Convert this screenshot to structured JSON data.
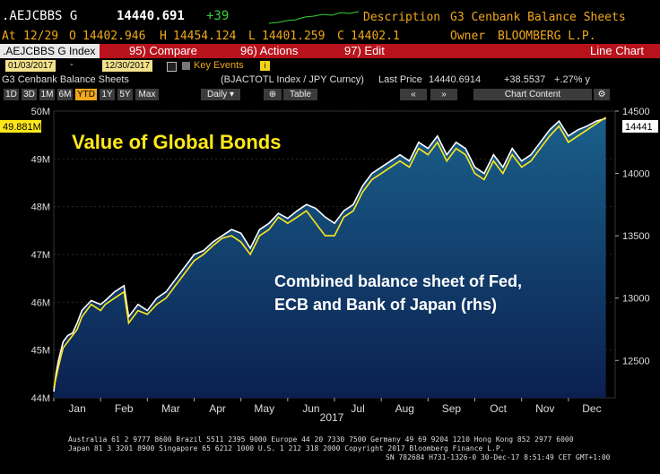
{
  "header": {
    "ticker": ".AEJCBBS G",
    "last": "14440.691",
    "change": "+39",
    "desc_label": "Description",
    "desc_value": "G3 Cenbank Balance Sheets",
    "at_label": "At",
    "at_value": "12/29",
    "o_label": "O",
    "o_value": "14402.946",
    "h_label": "H",
    "h_value": "14454.124",
    "l_label": "L",
    "l_value": "14401.259",
    "c_label": "C",
    "c_value": "14402.1",
    "owner_label": "Owner",
    "owner_value": "BLOOMBERG L.P."
  },
  "toolbar": {
    "index_label": ".AEJCBBS G Index",
    "compare_label": "95) Compare",
    "actions_label": "96) Actions",
    "edit_label": "97) Edit",
    "view_label": "Line Chart"
  },
  "range": {
    "start": "01/03/2017",
    "end": "12/30/2017",
    "key_events": "Key Events"
  },
  "info": {
    "title": "G3 Cenbank Balance Sheets",
    "compare_series": "(BJACTOTL Index / JPY Curncy)",
    "last_price_label": "Last Price",
    "last_price": "14440.6914",
    "change_abs": "+38.5537",
    "change_pct": "+.27% y"
  },
  "periods": [
    "1D",
    "3D",
    "1M",
    "6M",
    "YTD",
    "1Y",
    "5Y",
    "Max"
  ],
  "active_period": "YTD",
  "frequency": "Daily",
  "table_label": "Table",
  "chart_content_label": "Chart Content",
  "colors": {
    "white_series": "#ffffff",
    "yellow_series": "#ffe81a",
    "accent_red": "#b8131c",
    "area_top": "#1a5f8a",
    "area_bottom": "#0b2050"
  },
  "chart_data": {
    "type": "line",
    "title": "Value of Global Bonds",
    "annotation": "Combined balance sheet of Fed, ECB and Bank of Japan (rhs)",
    "xlabel": "2017",
    "x_ticks": [
      "Jan",
      "Feb",
      "Mar",
      "Apr",
      "May",
      "Jun",
      "Jul",
      "Aug",
      "Sep",
      "Oct",
      "Nov",
      "Dec"
    ],
    "left_axis": {
      "ticks": [
        "44M",
        "45M",
        "46M",
        "47M",
        "48M",
        "49M",
        "50M"
      ],
      "ylim": [
        44,
        50
      ]
    },
    "right_axis": {
      "ticks": [
        "12500",
        "13000",
        "13500",
        "14000",
        "14500"
      ],
      "ylim": [
        12200,
        14500
      ]
    },
    "series": [
      {
        "axis": "right",
        "color": "white",
        "values": [
          [
            0.0,
            12250
          ],
          [
            0.05,
            12400
          ],
          [
            0.1,
            12500
          ],
          [
            0.2,
            12650
          ],
          [
            0.3,
            12700
          ],
          [
            0.4,
            12720
          ],
          [
            0.5,
            12800
          ],
          [
            0.6,
            12900
          ],
          [
            0.8,
            12980
          ],
          [
            1.0,
            12950
          ],
          [
            1.1,
            12980
          ],
          [
            1.3,
            13050
          ],
          [
            1.5,
            13100
          ],
          [
            1.6,
            12850
          ],
          [
            1.8,
            12950
          ],
          [
            2.0,
            12900
          ],
          [
            2.2,
            13000
          ],
          [
            2.4,
            13050
          ],
          [
            2.6,
            13150
          ],
          [
            2.8,
            13250
          ],
          [
            3.0,
            13350
          ],
          [
            3.2,
            13380
          ],
          [
            3.4,
            13450
          ],
          [
            3.6,
            13500
          ],
          [
            3.8,
            13550
          ],
          [
            4.0,
            13520
          ],
          [
            4.2,
            13400
          ],
          [
            4.4,
            13550
          ],
          [
            4.6,
            13600
          ],
          [
            4.8,
            13680
          ],
          [
            5.0,
            13640
          ],
          [
            5.2,
            13700
          ],
          [
            5.4,
            13750
          ],
          [
            5.6,
            13720
          ],
          [
            5.8,
            13650
          ],
          [
            6.0,
            13600
          ],
          [
            6.2,
            13700
          ],
          [
            6.4,
            13750
          ],
          [
            6.6,
            13900
          ],
          [
            6.8,
            14000
          ],
          [
            7.0,
            14050
          ],
          [
            7.2,
            14100
          ],
          [
            7.4,
            14150
          ],
          [
            7.6,
            14100
          ],
          [
            7.8,
            14250
          ],
          [
            8.0,
            14200
          ],
          [
            8.2,
            14300
          ],
          [
            8.4,
            14150
          ],
          [
            8.6,
            14250
          ],
          [
            8.8,
            14200
          ],
          [
            9.0,
            14050
          ],
          [
            9.2,
            14000
          ],
          [
            9.4,
            14150
          ],
          [
            9.6,
            14050
          ],
          [
            9.8,
            14200
          ],
          [
            10.0,
            14100
          ],
          [
            10.2,
            14150
          ],
          [
            10.4,
            14250
          ],
          [
            10.6,
            14350
          ],
          [
            10.8,
            14420
          ],
          [
            11.0,
            14300
          ],
          [
            11.2,
            14350
          ],
          [
            11.4,
            14380
          ],
          [
            11.6,
            14420
          ],
          [
            11.8,
            14441
          ]
        ]
      },
      {
        "axis": "right",
        "color": "yellow",
        "values": [
          [
            0.0,
            12280
          ],
          [
            0.1,
            12450
          ],
          [
            0.2,
            12600
          ],
          [
            0.3,
            12650
          ],
          [
            0.4,
            12700
          ],
          [
            0.5,
            12750
          ],
          [
            0.6,
            12850
          ],
          [
            0.8,
            12950
          ],
          [
            1.0,
            12900
          ],
          [
            1.1,
            12950
          ],
          [
            1.3,
            13000
          ],
          [
            1.5,
            13050
          ],
          [
            1.6,
            12800
          ],
          [
            1.8,
            12900
          ],
          [
            2.0,
            12870
          ],
          [
            2.2,
            12950
          ],
          [
            2.4,
            13000
          ],
          [
            2.6,
            13100
          ],
          [
            2.8,
            13200
          ],
          [
            3.0,
            13300
          ],
          [
            3.2,
            13350
          ],
          [
            3.4,
            13420
          ],
          [
            3.6,
            13480
          ],
          [
            3.8,
            13500
          ],
          [
            4.0,
            13450
          ],
          [
            4.2,
            13350
          ],
          [
            4.4,
            13500
          ],
          [
            4.6,
            13550
          ],
          [
            4.8,
            13650
          ],
          [
            5.0,
            13600
          ],
          [
            5.2,
            13650
          ],
          [
            5.4,
            13700
          ],
          [
            5.6,
            13600
          ],
          [
            5.8,
            13500
          ],
          [
            6.0,
            13500
          ],
          [
            6.2,
            13650
          ],
          [
            6.4,
            13700
          ],
          [
            6.6,
            13850
          ],
          [
            6.8,
            13950
          ],
          [
            7.0,
            14000
          ],
          [
            7.2,
            14050
          ],
          [
            7.4,
            14100
          ],
          [
            7.6,
            14050
          ],
          [
            7.8,
            14200
          ],
          [
            8.0,
            14150
          ],
          [
            8.2,
            14250
          ],
          [
            8.4,
            14100
          ],
          [
            8.6,
            14200
          ],
          [
            8.8,
            14150
          ],
          [
            9.0,
            14000
          ],
          [
            9.2,
            13950
          ],
          [
            9.4,
            14100
          ],
          [
            9.6,
            14000
          ],
          [
            9.8,
            14150
          ],
          [
            10.0,
            14050
          ],
          [
            10.2,
            14100
          ],
          [
            10.4,
            14200
          ],
          [
            10.6,
            14300
          ],
          [
            10.8,
            14380
          ],
          [
            11.0,
            14250
          ],
          [
            11.2,
            14300
          ],
          [
            11.4,
            14350
          ],
          [
            11.6,
            14400
          ],
          [
            11.8,
            14450
          ]
        ]
      }
    ],
    "last_left_tag": "49.881M",
    "last_right_tag": "14441"
  },
  "footer": {
    "line1": "Australia 61 2 9777 8600 Brazil 5511 2395 9000 Europe 44 20 7330 7500 Germany 49 69 9204 1210 Hong Kong 852 2977 6000",
    "line2": "Japan 81 3 3201 8900        Singapore 65 6212 1000         U.S. 1 212 318 2000        Copyright 2017 Bloomberg Finance L.P.",
    "line3": "SN 782684 H731-1326-0 30-Dec-17  8:51:49 CET  GMT+1:00"
  }
}
